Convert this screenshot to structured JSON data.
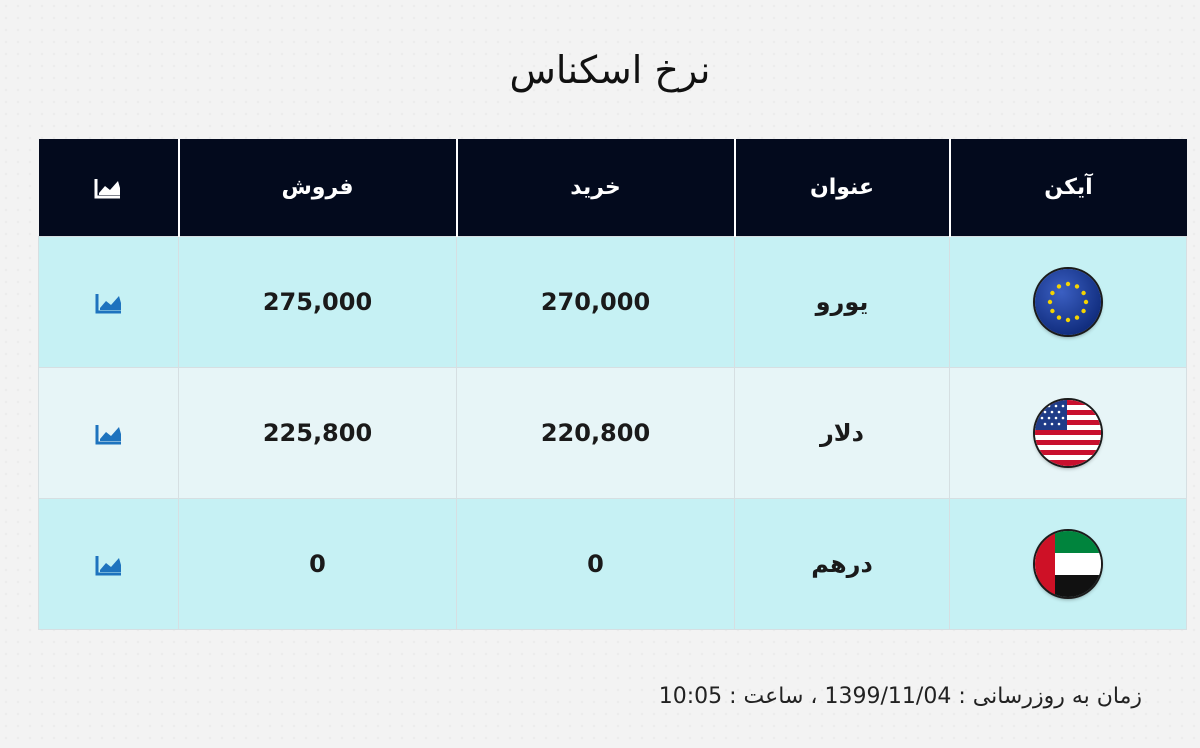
{
  "page_title": "نرخ اسکناس",
  "table": {
    "headers": {
      "icon": "آیکن",
      "title": "عنوان",
      "buy": "خرید",
      "sell": "فروش",
      "chart_icon": "chart-line-icon"
    },
    "rows": [
      {
        "flag_icon": "eu-flag-icon",
        "title": "یورو",
        "buy": "270,000",
        "sell": "275,000",
        "chart_icon": "chart-line-icon"
      },
      {
        "flag_icon": "us-flag-icon",
        "title": "دلار",
        "buy": "220,800",
        "sell": "225,800",
        "chart_icon": "chart-line-icon"
      },
      {
        "flag_icon": "uae-flag-icon",
        "title": "درهم",
        "buy": "0",
        "sell": "0",
        "chart_icon": "chart-line-icon"
      }
    ]
  },
  "footer": {
    "label": "زمان به روزرسانی :",
    "date": "1399/11/04",
    "separator": "،",
    "time_label": "ساعت :",
    "time": "10:05"
  },
  "colors": {
    "header_bg": "#030a1d",
    "row_alt_1": "#c6f1f4",
    "row_alt_2": "#e7f5f7",
    "chart_icon_header": "#ffffff",
    "chart_icon_row": "#1e73be"
  }
}
